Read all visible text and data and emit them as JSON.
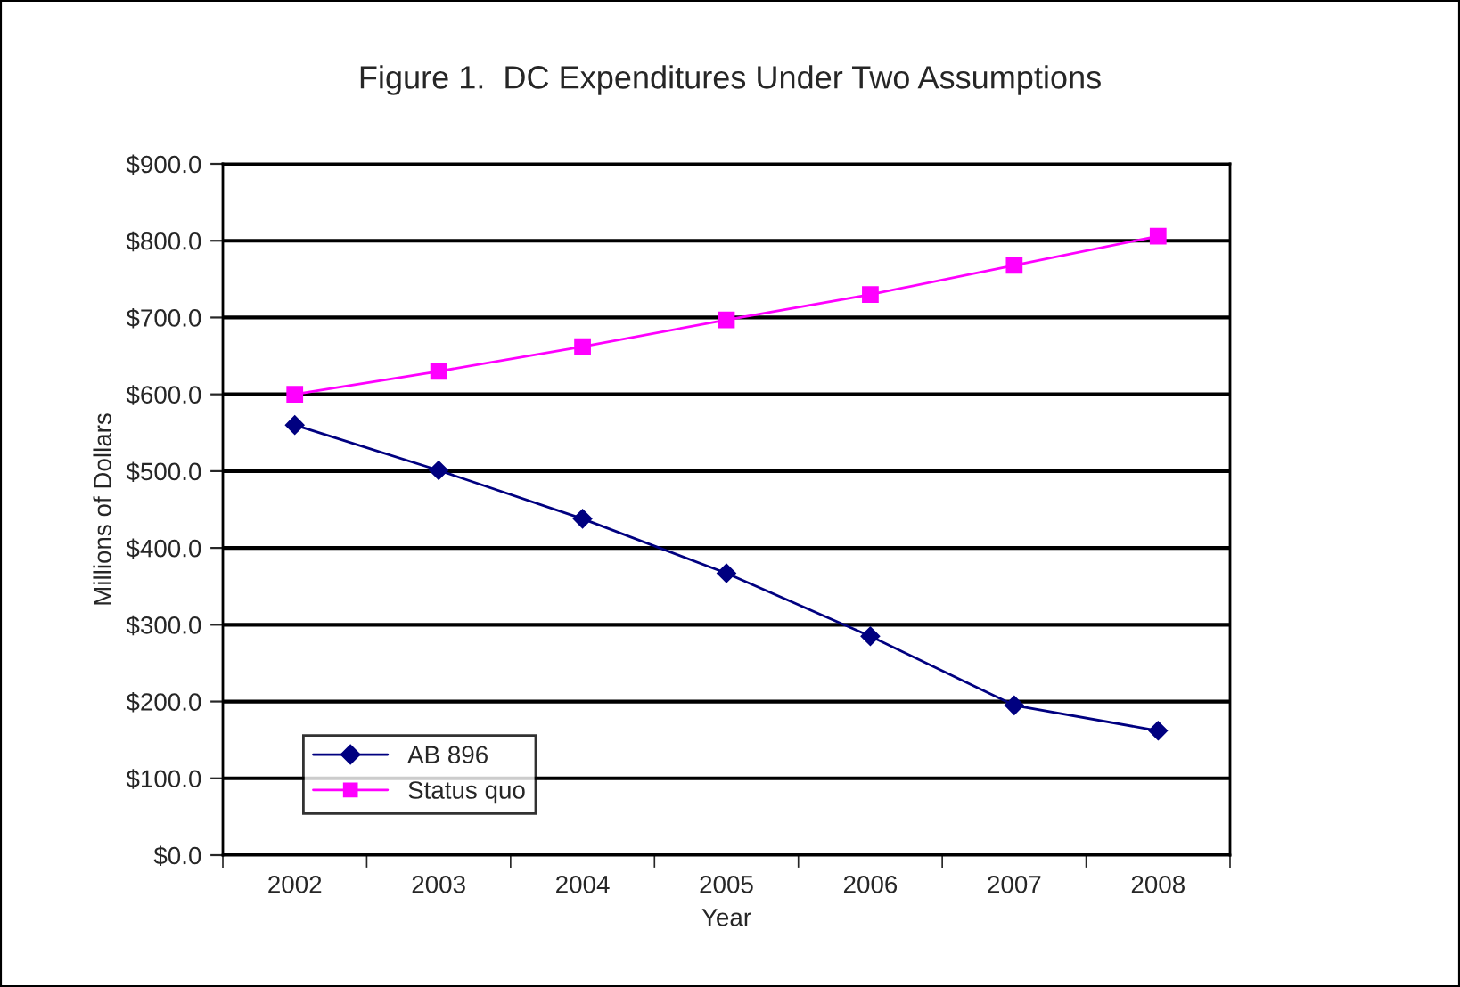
{
  "chart_data": {
    "type": "line",
    "title": "Figure 1.  DC Expenditures Under Two Assumptions",
    "xlabel": "Year",
    "ylabel": "Millions of Dollars",
    "categories": [
      "2002",
      "2003",
      "2004",
      "2005",
      "2006",
      "2007",
      "2008"
    ],
    "series": [
      {
        "name": "AB 896",
        "color": "#000080",
        "marker": "diamond",
        "values": [
          560,
          501,
          438,
          367,
          285,
          195,
          162
        ]
      },
      {
        "name": "Status quo",
        "color": "#ff00ff",
        "marker": "square",
        "values": [
          600,
          630,
          662,
          697,
          730,
          768,
          806
        ]
      }
    ],
    "ylim": [
      0,
      900
    ],
    "yticks": [
      {
        "value": 0,
        "label": "$0.0"
      },
      {
        "value": 100,
        "label": "$100.0"
      },
      {
        "value": 200,
        "label": "$200.0"
      },
      {
        "value": 300,
        "label": "$300.0"
      },
      {
        "value": 400,
        "label": "$400.0"
      },
      {
        "value": 500,
        "label": "$500.0"
      },
      {
        "value": 600,
        "label": "$600.0"
      },
      {
        "value": 700,
        "label": "$700.0"
      },
      {
        "value": 800,
        "label": "$800.0"
      },
      {
        "value": 900,
        "label": "$900.0"
      }
    ],
    "grid": "y",
    "legend": "bottom left",
    "line_style": "solid"
  }
}
